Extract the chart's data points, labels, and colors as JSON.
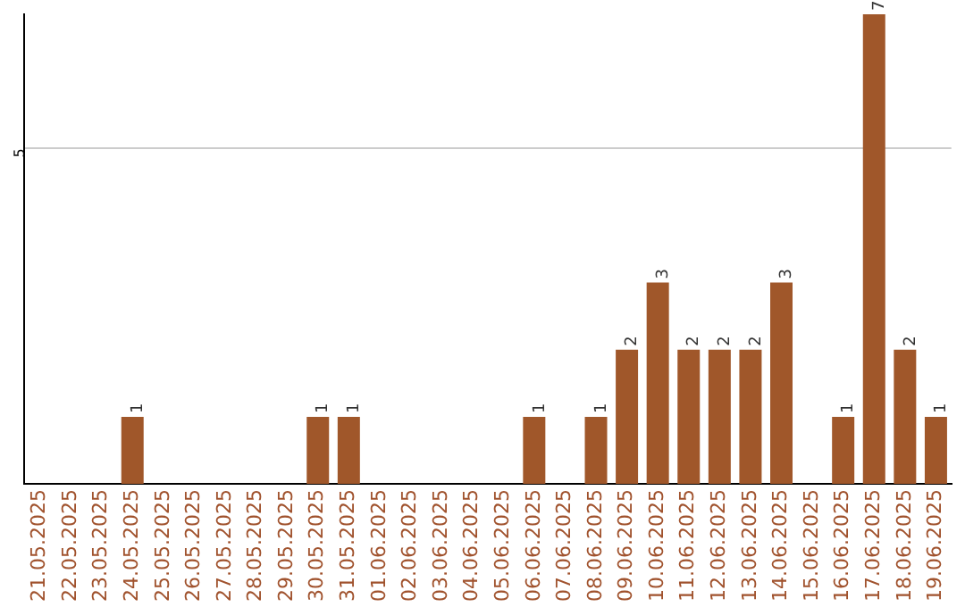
{
  "chart_data": {
    "type": "bar",
    "categories": [
      "21.05.2025",
      "22.05.2025",
      "23.05.2025",
      "24.05.2025",
      "25.05.2025",
      "26.05.2025",
      "27.05.2025",
      "28.05.2025",
      "29.05.2025",
      "30.05.2025",
      "31.05.2025",
      "01.06.2025",
      "02.06.2025",
      "03.06.2025",
      "04.06.2025",
      "05.06.2025",
      "06.06.2025",
      "07.06.2025",
      "08.06.2025",
      "09.06.2025",
      "10.06.2025",
      "11.06.2025",
      "12.06.2025",
      "13.06.2025",
      "14.06.2025",
      "15.06.2025",
      "16.06.2025",
      "17.06.2025",
      "18.06.2025",
      "19.06.2025"
    ],
    "values": [
      0,
      0,
      0,
      1,
      0,
      0,
      0,
      0,
      0,
      1,
      1,
      0,
      0,
      0,
      0,
      0,
      1,
      0,
      1,
      2,
      3,
      2,
      2,
      2,
      3,
      0,
      1,
      7,
      2,
      1
    ],
    "value_labels": [
      null,
      null,
      null,
      "1",
      null,
      null,
      null,
      null,
      null,
      "1",
      "1",
      null,
      null,
      null,
      null,
      null,
      "1",
      null,
      "1",
      "2",
      "3",
      "2",
      "2",
      "2",
      "3",
      null,
      "1",
      "7",
      "2",
      "1"
    ],
    "color": "#a0572a",
    "ylim": [
      0,
      7
    ],
    "yticks": [
      5
    ],
    "grid": "y"
  }
}
